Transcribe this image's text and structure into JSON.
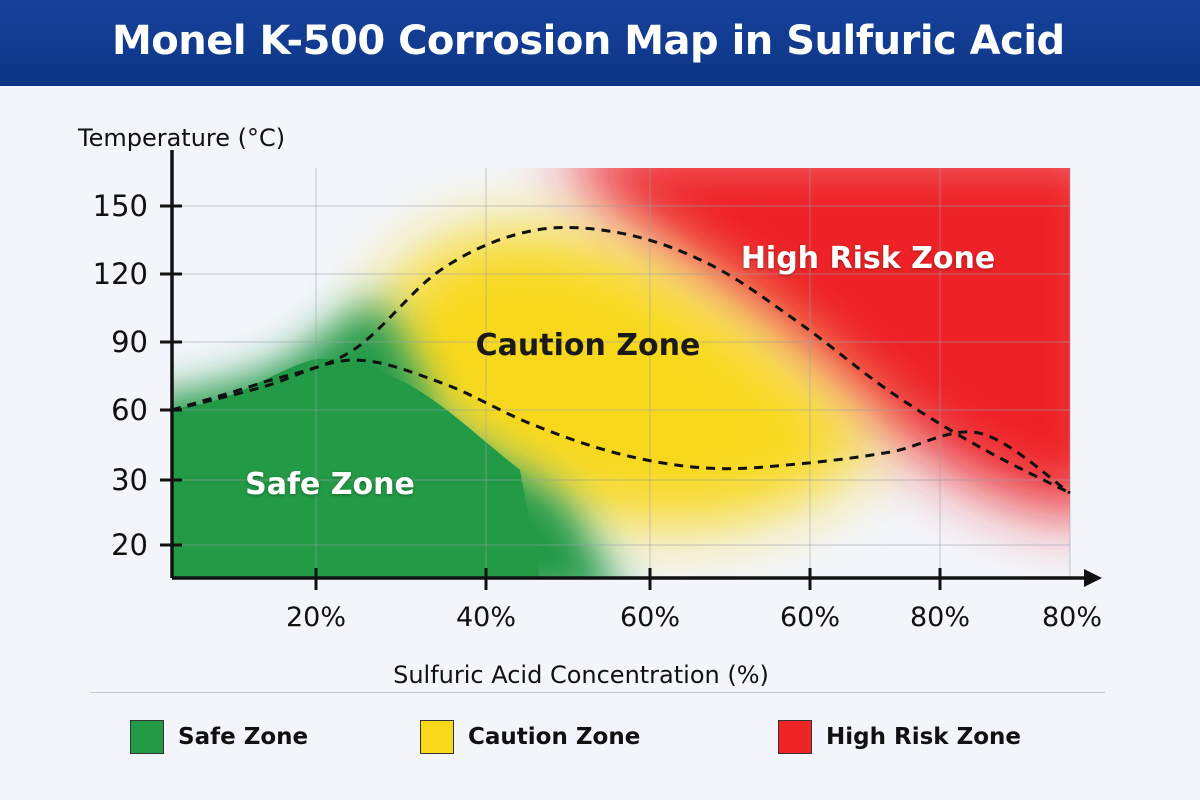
{
  "header": {
    "title": "Monel K-500 Corrosion Map in Sulfuric Acid"
  },
  "chart_data": {
    "type": "area",
    "title": "Monel K-500 Corrosion Map in Sulfuric Acid",
    "xlabel": "Sulfuric Acid Concentration (%)",
    "ylabel": "Temperature (°C)",
    "x_tick_labels": [
      "20%",
      "40%",
      "60%",
      "60%",
      "80%",
      "80%"
    ],
    "y_tick_labels": [
      "20",
      "30",
      "60",
      "90",
      "120",
      "150"
    ],
    "grid": true,
    "zones": [
      {
        "name": "Safe Zone",
        "label": "Safe Zone",
        "color": "#239a46"
      },
      {
        "name": "Caution Zone",
        "label": "Caution Zone",
        "color": "#f8d81a"
      },
      {
        "name": "High Risk Zone",
        "label": "High Risk Zone",
        "color": "#ee2426"
      }
    ],
    "boundaries": [
      {
        "name": "upper-boundary",
        "points": [
          [
            0,
            60
          ],
          [
            10,
            72
          ],
          [
            20,
            86
          ],
          [
            30,
            122
          ],
          [
            40,
            139
          ],
          [
            50,
            138
          ],
          [
            60,
            124
          ],
          [
            70,
            98
          ],
          [
            80,
            68
          ],
          [
            90,
            44
          ],
          [
            100,
            28
          ]
        ]
      },
      {
        "name": "lower-boundary",
        "points": [
          [
            0,
            60
          ],
          [
            10,
            70
          ],
          [
            20,
            82
          ],
          [
            30,
            72
          ],
          [
            40,
            54
          ],
          [
            50,
            41
          ],
          [
            60,
            35
          ],
          [
            70,
            37
          ],
          [
            80,
            42
          ],
          [
            90,
            50
          ],
          [
            100,
            28
          ]
        ]
      }
    ]
  },
  "legend": {
    "items": [
      {
        "label": "Safe Zone",
        "color": "#239a46"
      },
      {
        "label": "Caution Zone",
        "color": "#f8d81a"
      },
      {
        "label": "High Risk Zone",
        "color": "#ee2426"
      }
    ]
  }
}
